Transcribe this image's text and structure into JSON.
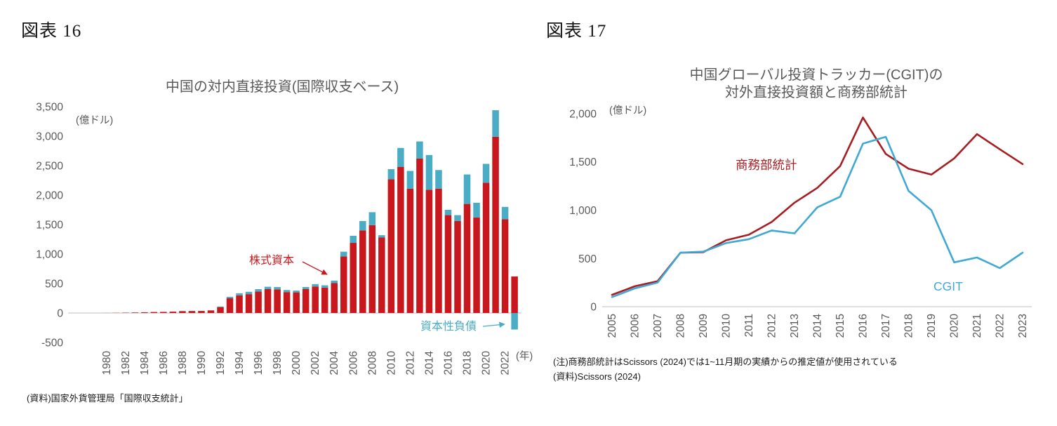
{
  "figure16": {
    "heading": "図表 16",
    "title": "中国の対内直接投資(国際収支ベース)",
    "unit_label": "(億ドル)",
    "year_axis_label": "(年)",
    "source": "(資料)国家外貨管理局「国際収支統計」",
    "annotations": {
      "equity": "株式資本",
      "debt": "資本性負債"
    },
    "colors": {
      "equity": "#C9181D",
      "debt": "#4AACC5"
    }
  },
  "figure17": {
    "heading": "図表 17",
    "title_line1": "中国グローバル投資トラッカー(CGIT)の",
    "title_line2": "対外直接投資額と商務部統計",
    "unit_label": "(億ドル)",
    "series_labels": {
      "mofcom": "商務部統計",
      "cgit": "CGIT"
    },
    "notes": [
      "(注)商務部統計はScissors (2024)では1~11月期の実績からの推定値が使用されている",
      "(資料)Scissors (2024)"
    ],
    "colors": {
      "mofcom": "#A61E22",
      "cgit": "#3FA9D4"
    }
  },
  "chart_data": [
    {
      "type": "bar",
      "stacked": true,
      "title": "中国の対内直接投資(国際収支ベース)",
      "ylabel": "億ドル",
      "xlabel": "年",
      "ylim": [
        -500,
        3500
      ],
      "ytick_step": 500,
      "xtick_every_years": 2,
      "grid": false,
      "categories": [
        1980,
        1981,
        1982,
        1983,
        1984,
        1985,
        1986,
        1987,
        1988,
        1989,
        1990,
        1991,
        1992,
        1993,
        1994,
        1995,
        1996,
        1997,
        1998,
        1999,
        2000,
        2001,
        2002,
        2003,
        2004,
        2005,
        2006,
        2007,
        2008,
        2009,
        2010,
        2011,
        2012,
        2013,
        2014,
        2015,
        2016,
        2017,
        2018,
        2019,
        2020,
        2021,
        2022,
        2023
      ],
      "series": [
        {
          "name": "株式資本",
          "color": "#C9181D",
          "values": [
            1,
            3,
            6,
            9,
            13,
            17,
            19,
            23,
            32,
            34,
            35,
            44,
            100,
            250,
            300,
            320,
            365,
            405,
            400,
            355,
            350,
            405,
            450,
            430,
            510,
            960,
            1190,
            1400,
            1490,
            1280,
            2270,
            2480,
            2110,
            2620,
            2090,
            2110,
            1660,
            1560,
            1850,
            1620,
            2210,
            2990,
            1590,
            620
          ]
        },
        {
          "name": "資本性負債",
          "color": "#4AACC5",
          "values": [
            0,
            0,
            0,
            0,
            0,
            0,
            0,
            0,
            0,
            0,
            0,
            0,
            10,
            25,
            35,
            40,
            40,
            40,
            40,
            35,
            30,
            35,
            40,
            40,
            40,
            80,
            120,
            160,
            220,
            40,
            170,
            320,
            300,
            290,
            590,
            315,
            90,
            100,
            500,
            250,
            320,
            450,
            210,
            -280
          ]
        }
      ]
    },
    {
      "type": "line",
      "title": "中国グローバル投資トラッカー(CGIT)の対外直接投資額と商務部統計",
      "ylabel": "億ドル",
      "ylim": [
        0,
        2000
      ],
      "ytick_step": 500,
      "grid": false,
      "legend_position": "inline-labels",
      "x": [
        2005,
        2006,
        2007,
        2008,
        2009,
        2010,
        2011,
        2012,
        2013,
        2014,
        2015,
        2016,
        2017,
        2018,
        2019,
        2020,
        2021,
        2022,
        2023
      ],
      "series": [
        {
          "name": "商務部統計",
          "color": "#A61E22",
          "values": [
            123,
            212,
            265,
            559,
            565,
            688,
            746,
            878,
            1078,
            1231,
            1457,
            1961,
            1583,
            1430,
            1369,
            1537,
            1788,
            1631,
            1478
          ]
        },
        {
          "name": "CGIT",
          "color": "#3FA9D4",
          "values": [
            100,
            190,
            250,
            560,
            570,
            660,
            700,
            790,
            760,
            1030,
            1140,
            1690,
            1760,
            1200,
            1000,
            460,
            510,
            400,
            560
          ]
        }
      ]
    }
  ]
}
